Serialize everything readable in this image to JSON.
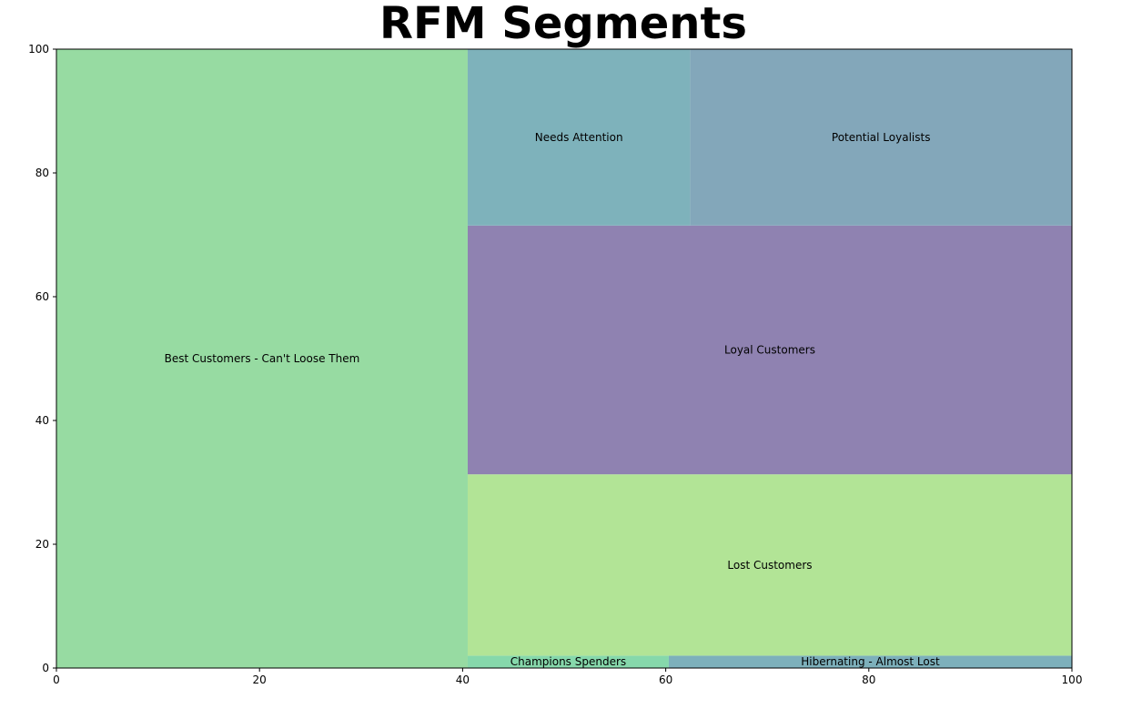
{
  "chart_data": {
    "type": "treemap",
    "title": "RFM Segments",
    "xlabel": "",
    "ylabel": "",
    "xlim": [
      0,
      100
    ],
    "ylim": [
      0,
      100
    ],
    "xticks": [
      0,
      20,
      40,
      60,
      80,
      100
    ],
    "yticks": [
      0,
      20,
      40,
      60,
      80,
      100
    ],
    "grid": false,
    "cells": [
      {
        "label": "Best Customers - Can't Loose Them",
        "x": 0,
        "y": 0,
        "dx": 40.5,
        "dy": 100,
        "color": "#97dba2"
      },
      {
        "label": "Champions Spenders",
        "x": 40.5,
        "y": 0,
        "dx": 19.8,
        "dy": 2,
        "color": "#86d8ab"
      },
      {
        "label": "Hibernating - Almost Lost",
        "x": 60.3,
        "y": 0,
        "dx": 39.7,
        "dy": 2,
        "color": "#7db0bb"
      },
      {
        "label": "Lost Customers",
        "x": 40.5,
        "y": 2,
        "dx": 59.5,
        "dy": 29.3,
        "color": "#b2e496"
      },
      {
        "label": "Loyal Customers",
        "x": 40.5,
        "y": 31.3,
        "dx": 59.5,
        "dy": 40.2,
        "color": "#8f82b1"
      },
      {
        "label": "Needs Attention",
        "x": 40.5,
        "y": 71.5,
        "dx": 21.9,
        "dy": 28.5,
        "color": "#7eb2bb"
      },
      {
        "label": "Potential Loyalists",
        "x": 62.4,
        "y": 71.5,
        "dx": 37.6,
        "dy": 28.5,
        "color": "#83a7ba"
      }
    ]
  }
}
